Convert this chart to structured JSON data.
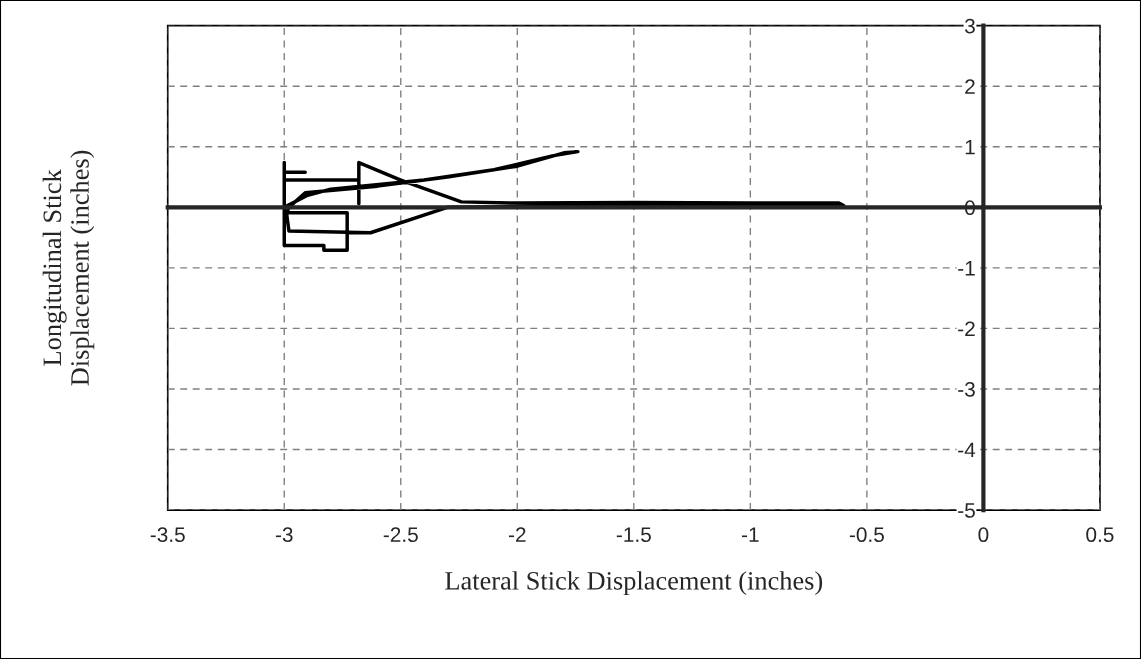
{
  "chart_data": {
    "type": "line",
    "xlabel": "Lateral Stick Displacement (inches)",
    "ylabel": "Longitudinal Stick\nDisplacement (inches)",
    "xlim": [
      -3.5,
      0.5
    ],
    "ylim": [
      -5,
      3
    ],
    "xticks": [
      -3.5,
      -3,
      -2.5,
      -2,
      -1.5,
      -1,
      -0.5,
      0,
      0.5
    ],
    "yticks": [
      -5,
      -4,
      -3,
      -2,
      -1,
      0,
      1,
      2,
      3
    ],
    "grid": true,
    "series": [
      {
        "color": "#000000",
        "x": [
          -3.0,
          -3.0,
          -3.0,
          -2.91,
          -3.0,
          -3.0,
          -2.68,
          -2.68,
          -2.68,
          -2.5,
          -2.24,
          -2.0,
          -1.5,
          -1.0,
          -0.62,
          -0.6,
          -1.5,
          -2.3,
          -2.63,
          -2.98,
          -2.99,
          -2.98,
          -2.91,
          -2.6,
          -2.3,
          -2.0,
          -1.8,
          -1.74,
          -1.85,
          -2.1,
          -2.4,
          -2.8,
          -2.9,
          -3.0,
          -3.0,
          -2.83,
          -2.83,
          -2.73,
          -2.73,
          -3.0
        ],
        "values": [
          0.0,
          0.74,
          0.58,
          0.58,
          0.58,
          0.45,
          0.45,
          0.06,
          0.74,
          0.45,
          0.09,
          0.07,
          0.08,
          0.07,
          0.07,
          0.03,
          0.03,
          0.0,
          -0.42,
          -0.39,
          -0.1,
          0.0,
          0.24,
          0.35,
          0.5,
          0.68,
          0.9,
          0.92,
          0.85,
          0.62,
          0.45,
          0.3,
          0.2,
          0.0,
          -0.63,
          -0.63,
          -0.71,
          -0.71,
          -0.09,
          -0.09
        ]
      }
    ]
  }
}
